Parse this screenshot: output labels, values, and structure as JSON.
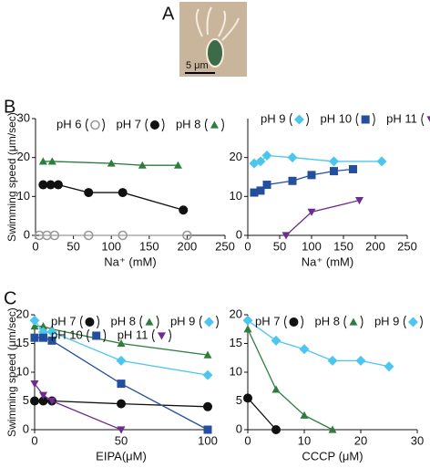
{
  "panel_labels": [
    "A",
    "B",
    "C"
  ],
  "scale_bar": "5 μm",
  "chart_data": [
    {
      "type": "scatter",
      "y_label": "Swimming speed (μm/sec)",
      "x_label": "Na⁺ (mM)",
      "xlim": [
        0,
        250
      ],
      "xticks": [
        0,
        50,
        100,
        150,
        200,
        250
      ],
      "ylim": [
        0,
        30
      ],
      "yticks": [
        0,
        10,
        20,
        30
      ],
      "series": [
        {
          "name": "pH 6",
          "color": "#999999",
          "marker": "open-circle",
          "x": [
            5,
            15,
            25,
            70,
            115,
            200
          ],
          "values": [
            0,
            0,
            0,
            0,
            0,
            0
          ]
        },
        {
          "name": "pH 7",
          "color": "#111111",
          "marker": "circle",
          "x": [
            10,
            20,
            30,
            70,
            115,
            195
          ],
          "values": [
            13,
            13,
            13,
            11,
            11,
            6.5
          ]
        },
        {
          "name": "pH 8",
          "color": "#2e7d3e",
          "marker": "triangle",
          "x": [
            10,
            22,
            100,
            141,
            188
          ],
          "values": [
            19,
            19,
            18.5,
            18,
            18
          ]
        }
      ]
    },
    {
      "type": "scatter",
      "x_label": "Na⁺ (mM)",
      "xlim": [
        0,
        250
      ],
      "xticks": [
        0,
        50,
        100,
        150,
        200,
        250
      ],
      "ylim": [
        0,
        30
      ],
      "yticks": [
        0,
        10,
        20
      ],
      "series": [
        {
          "name": "pH 9",
          "color": "#4cc6ee",
          "marker": "diamond",
          "x": [
            10,
            20,
            30,
            70,
            135,
            210
          ],
          "values": [
            18.5,
            19,
            20.5,
            20,
            19,
            19
          ]
        },
        {
          "name": "pH 10",
          "color": "#234f9e",
          "marker": "square",
          "x": [
            10,
            20,
            30,
            70,
            100,
            135,
            165
          ],
          "values": [
            11,
            11.5,
            13,
            14,
            15.5,
            16.5,
            17
          ]
        },
        {
          "name": "pH 11",
          "color": "#6b2e8f",
          "marker": "triangle-down",
          "x": [
            60,
            100,
            175
          ],
          "values": [
            0,
            6,
            9
          ]
        }
      ]
    },
    {
      "type": "scatter",
      "y_label": "Swimming speed (μm/sec)",
      "x_label": "EIPA(μM)",
      "xlim": [
        0,
        100
      ],
      "xticks": [
        0,
        50,
        100
      ],
      "ylim": [
        0,
        20
      ],
      "yticks": [
        0,
        5,
        10,
        15,
        20
      ],
      "series": [
        {
          "name": "pH 7",
          "color": "#111111",
          "marker": "circle",
          "x": [
            0,
            5,
            10,
            50,
            100
          ],
          "values": [
            5,
            5,
            5,
            4.5,
            4
          ]
        },
        {
          "name": "pH 8",
          "color": "#2e7d3e",
          "marker": "triangle",
          "x": [
            0,
            5,
            10,
            50,
            100
          ],
          "values": [
            18,
            18,
            17.5,
            15,
            13
          ]
        },
        {
          "name": "pH 9",
          "color": "#4cc6ee",
          "marker": "diamond",
          "x": [
            0,
            5,
            10,
            50,
            100
          ],
          "values": [
            19,
            17,
            17,
            12,
            9.5
          ]
        },
        {
          "name": "pH 10",
          "color": "#234f9e",
          "marker": "square",
          "x": [
            0,
            5,
            10,
            50,
            100
          ],
          "values": [
            16,
            16,
            15.5,
            8,
            0
          ]
        },
        {
          "name": "pH 11",
          "color": "#6b2e8f",
          "marker": "triangle-down",
          "x": [
            0,
            5,
            10,
            50
          ],
          "values": [
            8,
            6,
            5,
            0
          ]
        }
      ]
    },
    {
      "type": "scatter",
      "x_label": "CCCP (μM)",
      "xlim": [
        0,
        30
      ],
      "xticks": [
        0,
        10,
        20,
        30
      ],
      "ylim": [
        0,
        20
      ],
      "yticks": [
        0,
        5,
        10,
        15,
        20
      ],
      "series": [
        {
          "name": "pH 7",
          "color": "#111111",
          "marker": "circle",
          "x": [
            0,
            5
          ],
          "values": [
            5.5,
            0
          ]
        },
        {
          "name": "pH 8",
          "color": "#2e7d3e",
          "marker": "triangle",
          "x": [
            0,
            5,
            10,
            15
          ],
          "values": [
            17.5,
            7,
            2.5,
            0
          ]
        },
        {
          "name": "pH 9",
          "color": "#4cc6ee",
          "marker": "diamond",
          "x": [
            0,
            5,
            10,
            15,
            20,
            25
          ],
          "values": [
            19,
            15.5,
            14,
            12,
            12,
            11
          ]
        }
      ]
    }
  ]
}
